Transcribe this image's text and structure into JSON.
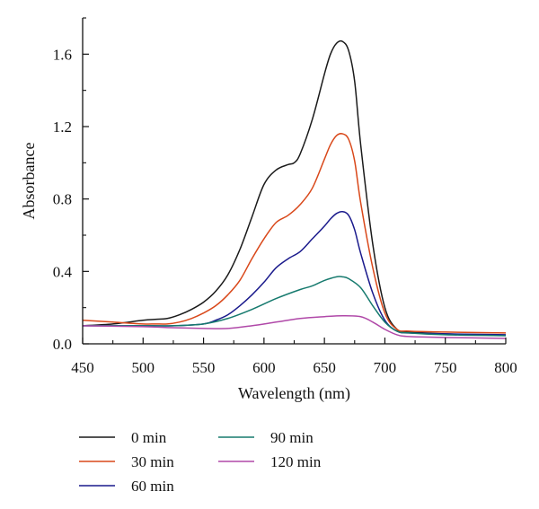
{
  "chart_data": {
    "type": "line",
    "title": "",
    "xlabel": "Wavelength (nm)",
    "ylabel": "Absorbance",
    "xlim": [
      450,
      800
    ],
    "ylim": [
      0.0,
      1.8
    ],
    "xticks": [
      450,
      500,
      550,
      600,
      650,
      700,
      750,
      800
    ],
    "xtick_labels": [
      "450",
      "500",
      "550",
      "600",
      "650",
      "700",
      "750",
      "800"
    ],
    "yticks": [
      0.0,
      0.4,
      0.8,
      1.2,
      1.6
    ],
    "ytick_labels": [
      "0.0",
      "0.4",
      "0.8",
      "1.2",
      "1.6"
    ],
    "grid": false,
    "legend_position": "bottom",
    "series": [
      {
        "name": "0 min",
        "color": "#1a1a1a",
        "x": [
          450,
          475,
          500,
          510,
          520,
          530,
          540,
          550,
          560,
          570,
          580,
          590,
          600,
          610,
          620,
          625,
          630,
          640,
          650,
          655,
          660,
          665,
          670,
          675,
          680,
          690,
          700,
          710,
          720,
          750,
          800
        ],
        "y": [
          0.1,
          0.11,
          0.13,
          0.135,
          0.14,
          0.16,
          0.19,
          0.23,
          0.29,
          0.38,
          0.52,
          0.7,
          0.88,
          0.96,
          0.99,
          1.0,
          1.05,
          1.24,
          1.49,
          1.6,
          1.66,
          1.67,
          1.62,
          1.45,
          1.1,
          0.55,
          0.2,
          0.08,
          0.065,
          0.055,
          0.045
        ]
      },
      {
        "name": "30 min",
        "color": "#d9481a",
        "x": [
          450,
          475,
          500,
          510,
          520,
          530,
          540,
          550,
          560,
          570,
          580,
          590,
          600,
          610,
          620,
          630,
          640,
          650,
          655,
          660,
          665,
          670,
          675,
          680,
          690,
          700,
          710,
          720,
          750,
          800
        ],
        "y": [
          0.13,
          0.12,
          0.11,
          0.11,
          0.11,
          0.12,
          0.14,
          0.17,
          0.21,
          0.27,
          0.35,
          0.47,
          0.58,
          0.67,
          0.71,
          0.77,
          0.86,
          1.02,
          1.1,
          1.15,
          1.16,
          1.13,
          1.01,
          0.78,
          0.42,
          0.17,
          0.08,
          0.07,
          0.065,
          0.06
        ]
      },
      {
        "name": "60 min",
        "color": "#1a1a8c",
        "x": [
          450,
          475,
          500,
          525,
          550,
          560,
          570,
          580,
          590,
          600,
          610,
          620,
          630,
          640,
          650,
          655,
          660,
          665,
          670,
          675,
          680,
          690,
          700,
          710,
          720,
          750,
          800
        ],
        "y": [
          0.1,
          0.1,
          0.1,
          0.1,
          0.11,
          0.13,
          0.16,
          0.21,
          0.27,
          0.34,
          0.42,
          0.47,
          0.51,
          0.58,
          0.65,
          0.69,
          0.72,
          0.73,
          0.71,
          0.63,
          0.5,
          0.28,
          0.13,
          0.07,
          0.06,
          0.055,
          0.05
        ]
      },
      {
        "name": "90 min",
        "color": "#167a6e",
        "x": [
          450,
          475,
          500,
          525,
          550,
          570,
          590,
          610,
          630,
          640,
          650,
          660,
          665,
          670,
          680,
          690,
          700,
          710,
          720,
          750,
          800
        ],
        "y": [
          0.1,
          0.1,
          0.1,
          0.1,
          0.11,
          0.14,
          0.19,
          0.25,
          0.3,
          0.32,
          0.35,
          0.37,
          0.37,
          0.36,
          0.31,
          0.21,
          0.12,
          0.07,
          0.06,
          0.05,
          0.045
        ]
      },
      {
        "name": "120 min",
        "color": "#b048a8",
        "x": [
          450,
          500,
          520,
          550,
          570,
          590,
          610,
          630,
          650,
          665,
          680,
          690,
          700,
          710,
          720,
          750,
          800
        ],
        "y": [
          0.1,
          0.095,
          0.09,
          0.085,
          0.085,
          0.1,
          0.12,
          0.14,
          0.15,
          0.155,
          0.15,
          0.12,
          0.08,
          0.05,
          0.04,
          0.035,
          0.03
        ]
      }
    ]
  }
}
